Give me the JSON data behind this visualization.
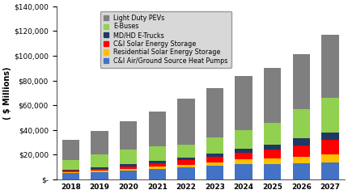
{
  "years": [
    "2018",
    "2019",
    "2020",
    "2021",
    "2022",
    "2023",
    "2024",
    "2025",
    "2026",
    "2027"
  ],
  "series": {
    "C&I Air/Ground Source Heat Pumps": {
      "color": "#4472C4",
      "values": [
        5000,
        6000,
        7000,
        8500,
        9500,
        11000,
        12500,
        12500,
        13000,
        13500
      ]
    },
    "Residential Solar Energy Storage": {
      "color": "#FFC000",
      "values": [
        800,
        1000,
        1500,
        2000,
        2500,
        3000,
        3500,
        4500,
        5500,
        6500
      ]
    },
    "C&I Solar Energy Storage": {
      "color": "#FF0000",
      "values": [
        1200,
        1800,
        2200,
        2500,
        3500,
        4500,
        5500,
        7000,
        9000,
        12000
      ]
    },
    "MD/HD E-Trucks": {
      "color": "#1F3864",
      "values": [
        800,
        1200,
        1500,
        2000,
        1800,
        2500,
        3500,
        4000,
        5500,
        6000
      ]
    },
    "E-Buses": {
      "color": "#92D050",
      "values": [
        8000,
        10000,
        12000,
        12000,
        11000,
        13000,
        15000,
        18000,
        24000,
        28000
      ]
    },
    "Light Duty PEVs": {
      "color": "#7F7F7F",
      "values": [
        16500,
        19500,
        23000,
        28000,
        37000,
        39500,
        43500,
        44000,
        44000,
        51000
      ]
    }
  },
  "ylim": [
    0,
    140000
  ],
  "yticks": [
    0,
    20000,
    40000,
    60000,
    80000,
    100000,
    120000,
    140000
  ],
  "ylabel": "( $ Millions)",
  "tick_fontsize": 6.5,
  "axis_fontsize": 7,
  "legend_fontsize": 5.8
}
